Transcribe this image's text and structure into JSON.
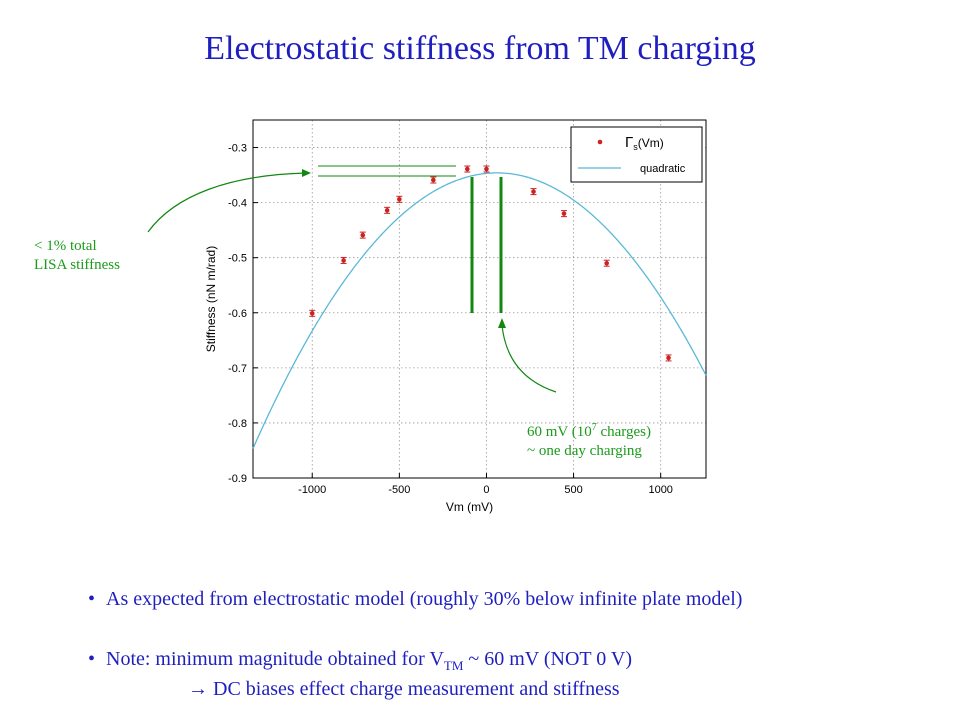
{
  "slide": {
    "title": "Electrostatic stiffness from TM charging",
    "annotation_left_line1": "< 1% total",
    "annotation_left_line2": "LISA stiffness",
    "annotation_right_line1_pre": "60 mV (10",
    "annotation_right_line1_sup": "7",
    "annotation_right_line1_post": " charges)",
    "annotation_right_line2": "~ one day charging",
    "bullets": {
      "bullet_symbol": "•",
      "b1": "As expected from electrostatic model (roughly 30% below infinite plate model)",
      "b2_pre": "Note: minimum magnitude obtained for V",
      "b2_sub": "TM",
      "b2_post": " ~ 60 mV (NOT 0 V)",
      "b3_arrow": "→",
      "b3": " DC biases effect charge measurement and stiffness"
    },
    "colors": {
      "title": "#1f1fc0",
      "annotation": "#1a9b1a",
      "data_points": "#cc2222",
      "fit_line": "#5ab8d8",
      "bars": "#118811"
    }
  },
  "chart_data": {
    "type": "scatter",
    "xlabel": "Vm (mV)",
    "ylabel": "Stiffness (nN m/rad)",
    "xlim": [
      -1340,
      1260
    ],
    "ylim": [
      -0.9,
      -0.25
    ],
    "x_ticks": [
      -1000,
      -500,
      0,
      500,
      1000
    ],
    "x_tick_labels": [
      "-1000",
      "-500",
      "0",
      "500",
      "1000"
    ],
    "y_ticks": [
      -0.3,
      -0.4,
      -0.5,
      -0.6,
      -0.7,
      -0.8,
      -0.9
    ],
    "y_tick_labels": [
      "-0.3",
      "-0.4",
      "-0.5",
      "-0.6",
      "-0.7",
      "-0.8",
      "-0.9"
    ],
    "grid": true,
    "legend_position": "top-right",
    "series": [
      {
        "name": "Γs(Vm)",
        "legend_main": "Γ",
        "legend_sub": "s",
        "legend_rest": "(Vm)",
        "style": "points",
        "x": [
          -1000,
          -820,
          -710,
          -570,
          -500,
          -305,
          -110,
          0,
          270,
          445,
          690,
          1045
        ],
        "y": [
          -0.601,
          -0.505,
          -0.459,
          -0.414,
          -0.394,
          -0.359,
          -0.339,
          -0.339,
          -0.38,
          -0.42,
          -0.51,
          -0.682
        ]
      },
      {
        "name": "quadratic",
        "style": "line",
        "vertex_x": 60,
        "vertex_y": -0.346,
        "a_per_mV2": -2.553e-07
      }
    ]
  }
}
